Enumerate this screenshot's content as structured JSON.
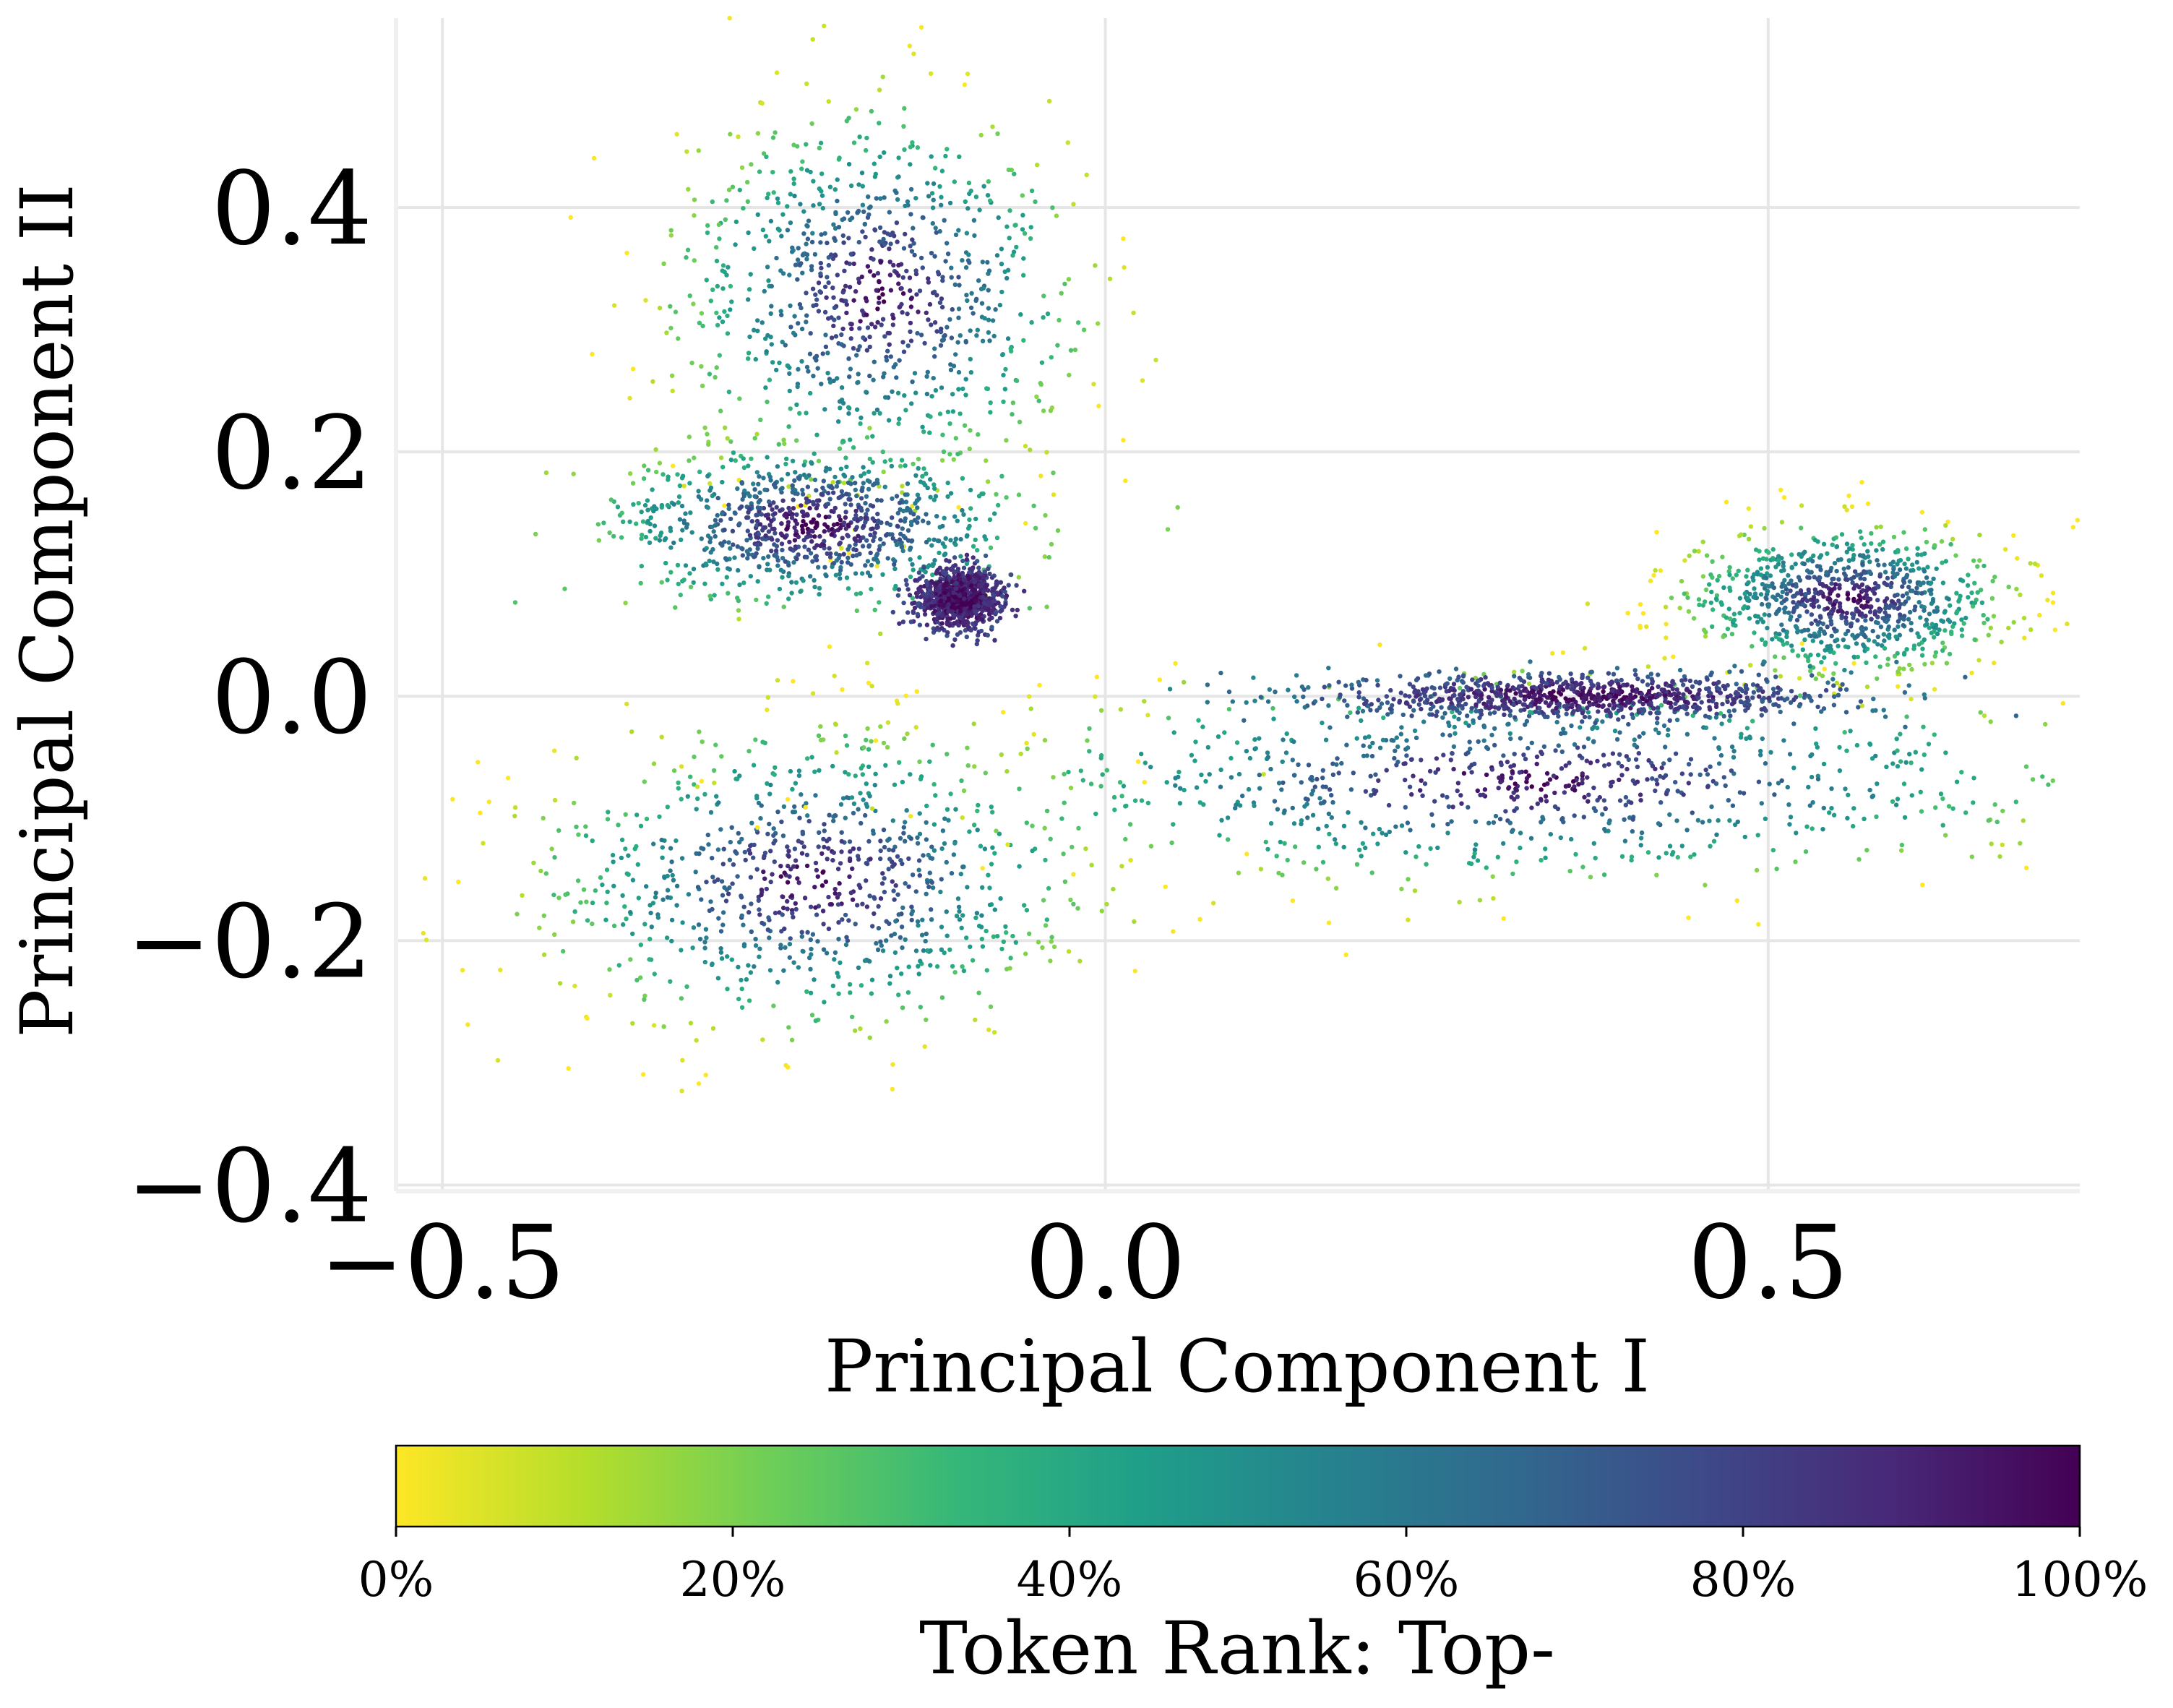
{
  "chart_data": {
    "type": "scatter",
    "title": "",
    "xlabel": "Principal Component I",
    "ylabel": "Principal Component II",
    "xlim": [
      -0.535,
      0.735
    ],
    "ylim": [
      -0.405,
      0.555
    ],
    "xticks": [
      -0.5,
      0.0,
      0.5
    ],
    "yticks": [
      -0.4,
      -0.2,
      0.0,
      0.2,
      0.4
    ],
    "xtick_labels": [
      "−0.5",
      "0.0",
      "0.5"
    ],
    "ytick_labels": [
      "−0.4",
      "−0.2",
      "0.0",
      "0.2",
      "0.4"
    ],
    "grid": true,
    "colormap": "viridis_r",
    "colors": {
      "viridis_r": [
        "#fde725",
        "#b5de2b",
        "#6ece58",
        "#35b779",
        "#1f9e89",
        "#26828e",
        "#31688e",
        "#3e4989",
        "#482878",
        "#440154"
      ],
      "grid": "#e6e6e6",
      "spine": "#f0f0f0"
    },
    "colorbar": {
      "label": "Token Rank: Top-",
      "range": [
        0,
        100
      ],
      "ticks": [
        0,
        20,
        40,
        60,
        80,
        100
      ],
      "tick_labels": [
        "0%",
        "20%",
        "40%",
        "60%",
        "80%",
        "100%"
      ],
      "orientation": "horizontal",
      "placement": "bottom"
    },
    "clusters": [
      {
        "region": "upper-left lobe",
        "center": [
          -0.17,
          0.33
        ],
        "spread": [
          0.075,
          0.075
        ],
        "rank_range": [
          0,
          100
        ]
      },
      {
        "region": "left arm",
        "center": [
          -0.22,
          0.14
        ],
        "spread": [
          0.07,
          0.03
        ],
        "rank_range": [
          20,
          100
        ]
      },
      {
        "region": "knot",
        "center": [
          -0.11,
          0.08
        ],
        "spread": [
          0.015,
          0.012
        ],
        "rank_range": [
          80,
          100
        ]
      },
      {
        "region": "lower-left lobe",
        "center": [
          -0.22,
          -0.15
        ],
        "spread": [
          0.1,
          0.06
        ],
        "rank_range": [
          0,
          100
        ]
      },
      {
        "region": "lower-right band",
        "center": [
          0.32,
          -0.07
        ],
        "spread": [
          0.2,
          0.04
        ],
        "rank_range": [
          0,
          100
        ]
      },
      {
        "region": "right cluster",
        "center": [
          0.56,
          0.08
        ],
        "spread": [
          0.06,
          0.03
        ],
        "rank_range": [
          0,
          100
        ]
      },
      {
        "region": "center filament",
        "center": [
          0.36,
          0.0
        ],
        "spread": [
          0.1,
          0.01
        ],
        "rank_range": [
          60,
          100
        ]
      }
    ]
  }
}
